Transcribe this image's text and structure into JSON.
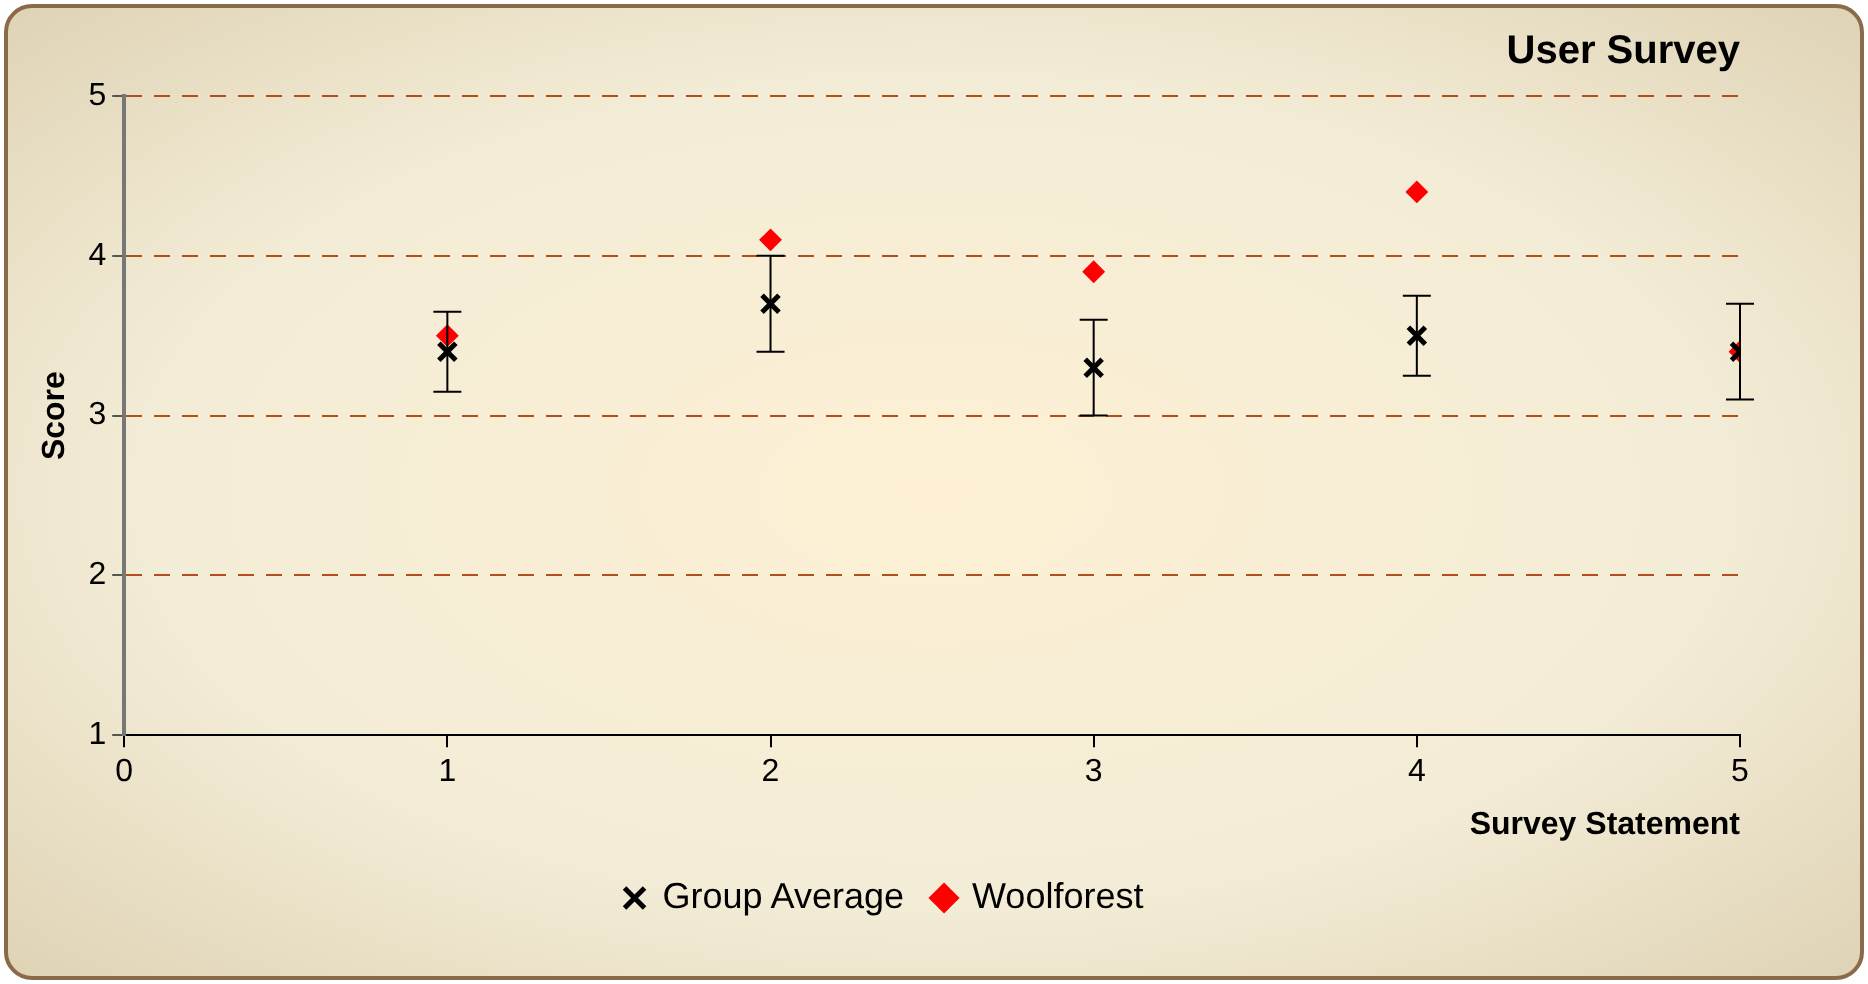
{
  "chart_data": {
    "type": "scatter",
    "title": "User Survey",
    "xlabel": "Survey Statement",
    "ylabel": "Score",
    "x": [
      1,
      2,
      3,
      4,
      5
    ],
    "xlim": [
      0,
      5
    ],
    "xticks": [
      0,
      1,
      2,
      3,
      4,
      5
    ],
    "ylim": [
      1,
      5
    ],
    "yticks": [
      1,
      2,
      3,
      4,
      5
    ],
    "grid": "y",
    "legend": "bottom",
    "series": [
      {
        "name": "Group Average",
        "color": "#000000",
        "marker": "cross",
        "values": [
          3.4,
          3.7,
          3.3,
          3.5,
          3.4
        ],
        "errors": [
          0.25,
          0.3,
          0.3,
          0.25,
          0.3
        ]
      },
      {
        "name": "Woolforest",
        "color": "#ff0000",
        "marker": "diamond",
        "values": [
          3.5,
          4.1,
          3.9,
          4.4,
          3.4
        ]
      }
    ]
  }
}
